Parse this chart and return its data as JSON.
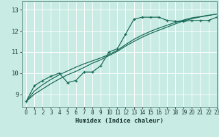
{
  "title": "",
  "xlabel": "Humidex (Indice chaleur)",
  "bg_color": "#c8ebe3",
  "grid_color": "#b0d8d0",
  "line_color": "#1a6b5a",
  "xlim": [
    -0.5,
    23
  ],
  "ylim": [
    8.4,
    13.4
  ],
  "xticks": [
    0,
    1,
    2,
    3,
    4,
    5,
    6,
    7,
    8,
    9,
    10,
    11,
    12,
    13,
    14,
    15,
    16,
    17,
    18,
    19,
    20,
    21,
    22,
    23
  ],
  "yticks": [
    9,
    10,
    11,
    12,
    13
  ],
  "data_x": [
    0,
    1,
    2,
    3,
    4,
    5,
    6,
    7,
    8,
    9,
    10,
    11,
    12,
    13,
    14,
    15,
    16,
    17,
    18,
    19,
    20,
    21,
    22,
    23
  ],
  "data_y1": [
    8.65,
    9.4,
    9.65,
    9.85,
    10.0,
    9.55,
    9.65,
    10.05,
    10.05,
    10.35,
    11.0,
    11.15,
    11.85,
    12.55,
    12.65,
    12.65,
    12.65,
    12.5,
    12.45,
    12.45,
    12.5,
    12.5,
    12.5,
    12.65
  ],
  "data_y2": [
    8.65,
    9.15,
    9.45,
    9.7,
    9.92,
    10.1,
    10.28,
    10.44,
    10.58,
    10.72,
    10.88,
    11.08,
    11.35,
    11.6,
    11.8,
    11.98,
    12.13,
    12.27,
    12.4,
    12.52,
    12.62,
    12.68,
    12.74,
    12.8
  ],
  "data_y3": [
    8.65,
    9.0,
    9.25,
    9.5,
    9.72,
    9.92,
    10.08,
    10.27,
    10.47,
    10.63,
    10.83,
    11.03,
    11.28,
    11.5,
    11.7,
    11.88,
    12.03,
    12.18,
    12.33,
    12.48,
    12.58,
    12.66,
    12.73,
    12.8
  ]
}
